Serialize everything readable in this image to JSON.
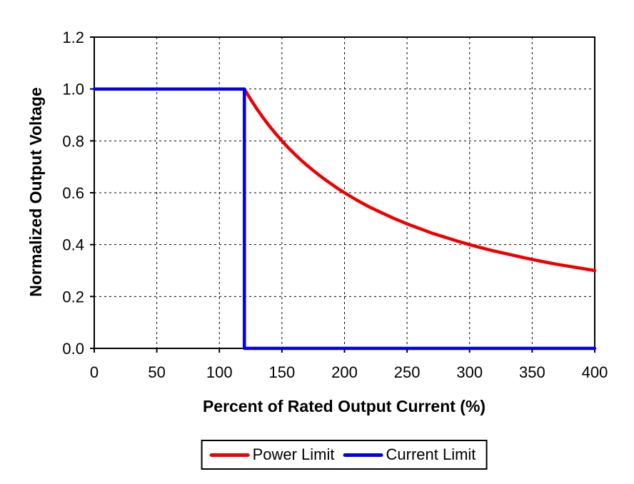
{
  "chart_data": {
    "type": "line",
    "title": "",
    "xlabel": "Percent of Rated Output Current (%)",
    "ylabel": "Normalized Output Voltage",
    "xlim": [
      0,
      400
    ],
    "ylim": [
      0,
      1.2
    ],
    "xticks": [
      0,
      50,
      100,
      150,
      200,
      250,
      300,
      350,
      400
    ],
    "yticks": [
      0,
      0.2,
      0.4,
      0.6,
      0.8,
      1.0,
      1.2
    ],
    "x_tick_labels": [
      "0",
      "50",
      "100",
      "150",
      "200",
      "250",
      "300",
      "350",
      "400"
    ],
    "y_tick_labels": [
      "0.0",
      "0.2",
      "0.4",
      "0.6",
      "0.8",
      "1.0",
      "1.2"
    ],
    "grid": "dashed",
    "grid_color": "#000000",
    "axis_color": "#000000",
    "background_color": "#ffffff",
    "legend_position": "bottom",
    "series": [
      {
        "name": "Power Limit",
        "color": "#ee0000",
        "points": [
          [
            120,
            1.0
          ],
          [
            125,
            0.96
          ],
          [
            130,
            0.923
          ],
          [
            135,
            0.889
          ],
          [
            140,
            0.857
          ],
          [
            145,
            0.828
          ],
          [
            150,
            0.8
          ],
          [
            155,
            0.774
          ],
          [
            160,
            0.75
          ],
          [
            165,
            0.727
          ],
          [
            170,
            0.706
          ],
          [
            175,
            0.686
          ],
          [
            180,
            0.667
          ],
          [
            185,
            0.649
          ],
          [
            190,
            0.632
          ],
          [
            195,
            0.615
          ],
          [
            200,
            0.6
          ],
          [
            210,
            0.571
          ],
          [
            220,
            0.545
          ],
          [
            230,
            0.522
          ],
          [
            240,
            0.5
          ],
          [
            250,
            0.48
          ],
          [
            260,
            0.462
          ],
          [
            270,
            0.444
          ],
          [
            280,
            0.429
          ],
          [
            290,
            0.414
          ],
          [
            300,
            0.4
          ],
          [
            310,
            0.387
          ],
          [
            320,
            0.375
          ],
          [
            330,
            0.364
          ],
          [
            340,
            0.353
          ],
          [
            350,
            0.343
          ],
          [
            360,
            0.333
          ],
          [
            370,
            0.324
          ],
          [
            380,
            0.316
          ],
          [
            390,
            0.308
          ],
          [
            400,
            0.3
          ]
        ]
      },
      {
        "name": "Current Limit",
        "color": "#0000ee",
        "points": [
          [
            0,
            1.0
          ],
          [
            120,
            1.0
          ],
          [
            120,
            0.0
          ],
          [
            400,
            0.0
          ]
        ]
      }
    ]
  }
}
